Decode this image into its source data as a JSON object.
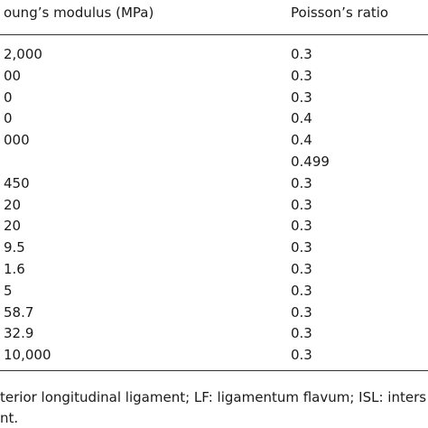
{
  "table": {
    "header": [
      "oung’s modulus (MPa)",
      "Poisson’s ratio"
    ],
    "rows": [
      [
        "2,000",
        "0.3"
      ],
      [
        "00",
        "0.3"
      ],
      [
        "0",
        "0.3"
      ],
      [
        "0",
        "0.4"
      ],
      [
        "000",
        "0.4"
      ],
      [
        null,
        "0.499"
      ],
      [
        "450",
        "0.3"
      ],
      [
        "20",
        "0.3"
      ],
      [
        "20",
        "0.3"
      ],
      [
        "9.5",
        "0.3"
      ],
      [
        "1.6",
        "0.3"
      ],
      [
        "5",
        "0.3"
      ],
      [
        "58.7",
        "0.3"
      ],
      [
        "32.9",
        "0.3"
      ],
      [
        "10,000",
        "0.3"
      ]
    ]
  },
  "footnote": [
    "terior longitudinal ligament; LF: ligamentum flavum; ISL: inters",
    "nt."
  ]
}
